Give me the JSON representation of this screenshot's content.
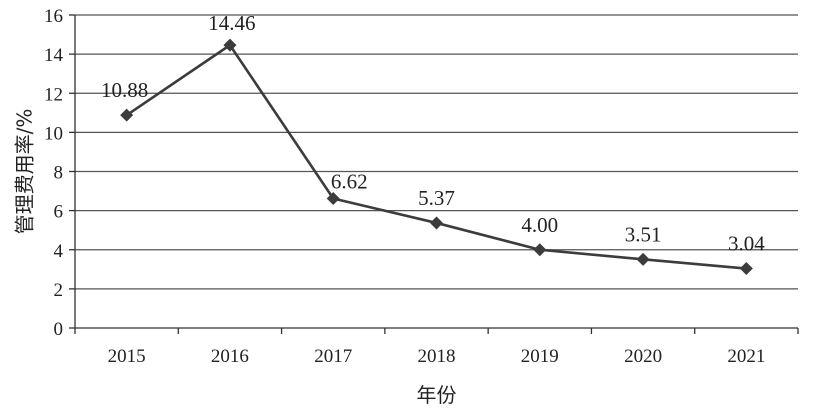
{
  "chart_data": {
    "type": "line",
    "title": "",
    "xlabel": "年份",
    "ylabel": "管理费用率/%",
    "categories": [
      "2015",
      "2016",
      "2017",
      "2018",
      "2019",
      "2020",
      "2021"
    ],
    "series": [
      {
        "values": [
          10.88,
          14.46,
          6.62,
          5.37,
          4.0,
          3.51,
          3.04
        ],
        "value_labels": [
          "10.88",
          "14.46",
          "6.62",
          "5.37",
          "4.00",
          "3.51",
          "3.04"
        ]
      }
    ],
    "ylim": [
      0,
      16
    ],
    "yticks": [
      0,
      2,
      4,
      6,
      8,
      10,
      12,
      14,
      16
    ],
    "grid": "horizontal",
    "marker": "diamond",
    "line_color": "#3c3c3c",
    "grid_color": "#555555"
  }
}
